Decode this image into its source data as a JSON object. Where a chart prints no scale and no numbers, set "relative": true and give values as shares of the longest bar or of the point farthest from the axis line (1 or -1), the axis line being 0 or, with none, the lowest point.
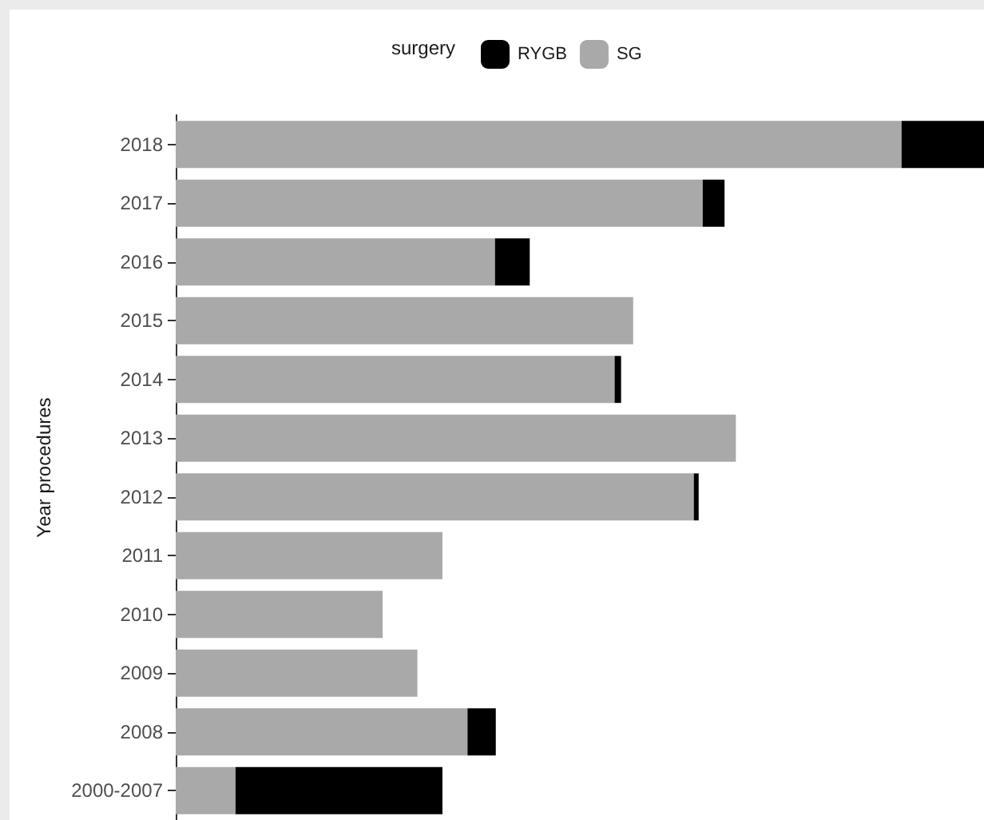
{
  "chart_data": {
    "type": "bar",
    "orientation": "horizontal",
    "stacked": true,
    "relative": true,
    "ylabel": "Year procedures",
    "legend_title": "surgery",
    "legend": "top",
    "grid": false,
    "categories": [
      "2018",
      "2017",
      "2016",
      "2015",
      "2014",
      "2013",
      "2012",
      "2011",
      "2010",
      "2009",
      "2008",
      "2000-2007"
    ],
    "series": [
      {
        "name": "SG",
        "color": "#a9a9a9",
        "values": [
          0.898,
          0.652,
          0.395,
          0.566,
          0.543,
          0.693,
          0.641,
          0.33,
          0.256,
          0.299,
          0.361,
          0.074
        ]
      },
      {
        "name": "RYGB",
        "color": "#000000",
        "values": [
          0.102,
          0.027,
          0.043,
          0,
          0.008,
          0,
          0.006,
          0,
          0,
          0,
          0.035,
          0.256
        ]
      }
    ]
  }
}
